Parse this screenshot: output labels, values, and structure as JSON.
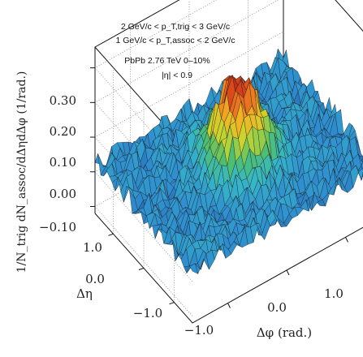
{
  "chart_data": {
    "type": "surface",
    "title": "",
    "annotations": [
      "2 GeV/c < p_T,trig < 3 GeV/c",
      "1 GeV/c < p_T,assoc < 2 GeV/c",
      "PbPb 2.76 TeV 0–10%",
      "|η| < 0.9"
    ],
    "zlabel": "1/N_trig dN_assoc/dΔηdΔφ (1/rad.)",
    "xlabel": "Δφ (rad.)",
    "ylabel": "Δη",
    "z_ticks": [
      "−0.10",
      "0.00",
      "0.10",
      "0.20",
      "0.30"
    ],
    "z_tick_values": [
      -0.1,
      0.0,
      0.1,
      0.2,
      0.3
    ],
    "x_ticks": [
      "−1.0",
      "0.0",
      "1.0"
    ],
    "x_tick_values": [
      -1.0,
      0.0,
      1.0
    ],
    "y_ticks": [
      "−1.0",
      "0.0",
      "1.0"
    ],
    "y_tick_values": [
      -1.0,
      0.0,
      1.0
    ],
    "xlim": [
      -1.6,
      1.6
    ],
    "ylim": [
      -1.6,
      1.6
    ],
    "zlim": [
      -0.12,
      0.36
    ],
    "peak": {
      "dphi": 0.0,
      "deta": 0.0,
      "value": 0.28
    },
    "baseline": 0.03,
    "grid": true,
    "colormap": [
      "#1f4f9a",
      "#2f8fd0",
      "#36b7c9",
      "#4fbf6a",
      "#c8d630",
      "#f2b323",
      "#e5531c",
      "#a81814"
    ]
  }
}
